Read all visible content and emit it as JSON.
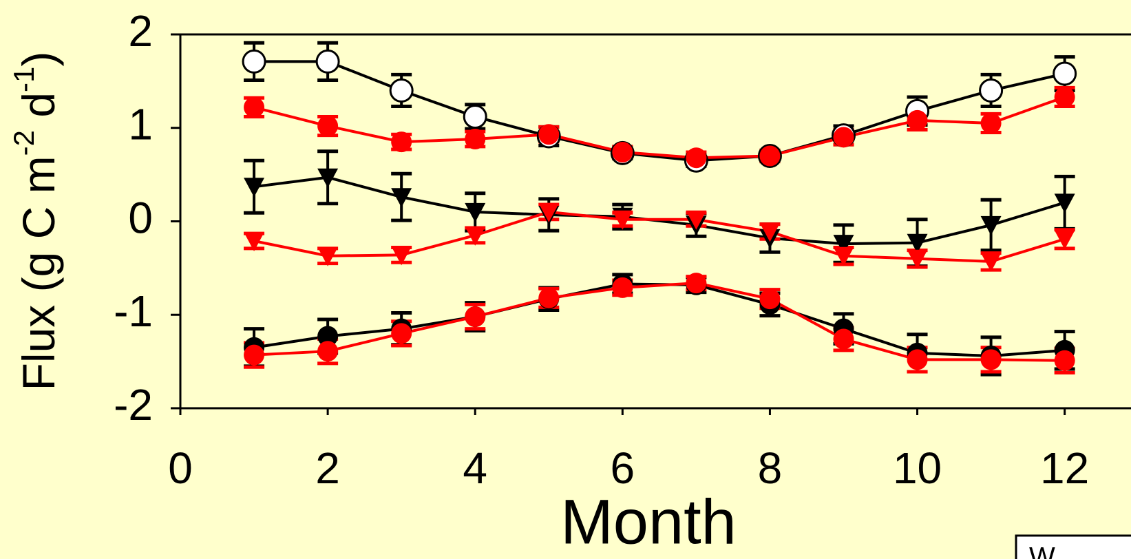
{
  "chart_data": {
    "type": "line",
    "xlabel": "Month",
    "ylabel_parts": [
      "Flux (g C m",
      "-2",
      " d",
      "-1",
      ")"
    ],
    "xlim": [
      0,
      12.9
    ],
    "xticks": [
      0,
      2,
      4,
      6,
      8,
      10,
      12
    ],
    "ylim": [
      -2,
      2
    ],
    "yticks": [
      -2,
      -1,
      0,
      1,
      2
    ],
    "x": [
      1,
      2,
      3,
      4,
      5,
      6,
      7,
      8,
      9,
      10,
      11,
      12
    ],
    "legend_text": "W",
    "series": [
      {
        "color": "#000000",
        "marker": "open-circle",
        "values": [
          1.71,
          1.71,
          1.4,
          1.12,
          0.91,
          0.73,
          0.65,
          0.7,
          0.92,
          1.18,
          1.4,
          1.58
        ],
        "errors": [
          0.2,
          0.2,
          0.17,
          0.13,
          0.1,
          0.06,
          0.06,
          0.06,
          0.1,
          0.15,
          0.17,
          0.18
        ]
      },
      {
        "color": "#ff0000",
        "marker": "circle",
        "values": [
          1.22,
          1.02,
          0.85,
          0.88,
          0.93,
          0.74,
          0.68,
          0.7,
          0.9,
          1.08,
          1.05,
          1.33
        ],
        "errors": [
          0.1,
          0.1,
          0.08,
          0.08,
          0.08,
          0.06,
          0.06,
          0.06,
          0.08,
          0.1,
          0.1,
          0.1
        ]
      },
      {
        "color": "#000000",
        "marker": "triangle",
        "values": [
          0.37,
          0.47,
          0.26,
          0.1,
          0.07,
          0.05,
          -0.04,
          -0.18,
          -0.24,
          -0.23,
          -0.04,
          0.2
        ],
        "errors": [
          0.28,
          0.28,
          0.25,
          0.2,
          0.17,
          0.13,
          0.12,
          0.15,
          0.2,
          0.25,
          0.27,
          0.28
        ]
      },
      {
        "color": "#ff0000",
        "marker": "triangle",
        "values": [
          -0.21,
          -0.37,
          -0.36,
          -0.15,
          0.1,
          0.02,
          0.02,
          -0.11,
          -0.37,
          -0.4,
          -0.43,
          -0.19
        ],
        "errors": [
          0.08,
          0.08,
          0.08,
          0.08,
          0.08,
          0.07,
          0.07,
          0.08,
          0.09,
          0.09,
          0.09,
          0.1
        ]
      },
      {
        "color": "#000000",
        "marker": "circle",
        "values": [
          -1.35,
          -1.23,
          -1.15,
          -1.02,
          -0.83,
          -0.67,
          -0.68,
          -0.89,
          -1.15,
          -1.41,
          -1.44,
          -1.38
        ],
        "errors": [
          0.2,
          0.18,
          0.17,
          0.15,
          0.12,
          0.1,
          0.08,
          0.12,
          0.16,
          0.2,
          0.2,
          0.2
        ]
      },
      {
        "color": "#ff0000",
        "marker": "circle",
        "values": [
          -1.43,
          -1.39,
          -1.2,
          -1.02,
          -0.82,
          -0.71,
          -0.66,
          -0.83,
          -1.26,
          -1.48,
          -1.48,
          -1.49
        ],
        "errors": [
          0.13,
          0.13,
          0.13,
          0.13,
          0.1,
          0.08,
          0.07,
          0.1,
          0.12,
          0.13,
          0.13,
          0.13
        ]
      }
    ]
  }
}
